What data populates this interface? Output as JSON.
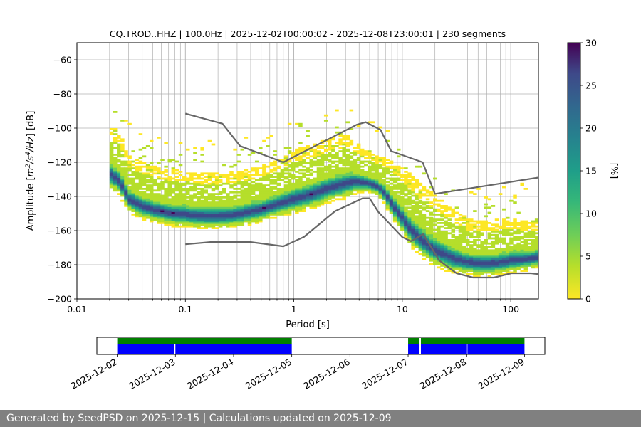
{
  "chart_data": [
    {
      "type": "heatmap",
      "title": "CQ.TROD..HHZ | 100.0Hz | 2025-12-02T00:00:02 - 2025-12-08T23:00:01 | 230 segments",
      "xlabel": "Period [s]",
      "ylabel_prefix": "Amplitude [",
      "ylabel_units": {
        "base1": "m",
        "sup1": "2",
        "mid": "/s",
        "sup2": "4",
        "tail": "/Hz",
        "end": "] [dB]"
      },
      "xscale": "log",
      "xlim": [
        0.01,
        180
      ],
      "ylim": [
        -200,
        -50
      ],
      "x_ticks": [
        0.01,
        0.1,
        1,
        10,
        100
      ],
      "x_tick_labels": [
        "0.01",
        "0.1",
        "1",
        "10",
        "100"
      ],
      "y_ticks": [
        -200,
        -180,
        -160,
        -140,
        -120,
        -100,
        -80,
        -60
      ],
      "y_tick_labels": [
        "−200",
        "−180",
        "−160",
        "−140",
        "−120",
        "−100",
        "−80",
        "−60"
      ],
      "grid": true,
      "colorbar": {
        "label": "[%]",
        "min": 0,
        "max": 30,
        "ticks": [
          0,
          5,
          10,
          15,
          20,
          25,
          30
        ],
        "tick_labels": [
          "0",
          "5",
          "10",
          "15",
          "20",
          "25",
          "30"
        ],
        "colormap": "viridis_r"
      },
      "psd_mode": {
        "periods": [
          0.02,
          0.025,
          0.03,
          0.04,
          0.05,
          0.07,
          0.1,
          0.15,
          0.2,
          0.3,
          0.5,
          0.7,
          1,
          1.5,
          2,
          3,
          3.5,
          4,
          5,
          6,
          7,
          8,
          10,
          12,
          15,
          20,
          30,
          40,
          60,
          80,
          100,
          150,
          180
        ],
        "db": [
          -127,
          -132,
          -142,
          -146,
          -148,
          -150,
          -151,
          -152,
          -152,
          -151,
          -148,
          -145,
          -142,
          -139,
          -136,
          -133,
          -132,
          -132,
          -133,
          -135,
          -139,
          -145,
          -153,
          -160,
          -166,
          -172,
          -177,
          -179,
          -180,
          -179,
          -178,
          -177,
          -176
        ],
        "spread_db": [
          8,
          8,
          7,
          7,
          7,
          7,
          7,
          7,
          7,
          7,
          7,
          7,
          8,
          8,
          8,
          8,
          7,
          6,
          5,
          5,
          6,
          7,
          8,
          9,
          9,
          9,
          8,
          7,
          7,
          7,
          7,
          6,
          6
        ]
      },
      "series": [
        {
          "name": "NHNM",
          "x": [
            0.1,
            0.22,
            0.32,
            0.8,
            3.8,
            4.6,
            6.3,
            7.9,
            15.4,
            20,
            354.8
          ],
          "values": [
            -91.5,
            -97.4,
            -110.5,
            -120,
            -98,
            -96.5,
            -101,
            -113.5,
            -120,
            -138.5,
            -126
          ]
        },
        {
          "name": "NLNM",
          "x": [
            0.1,
            0.17,
            0.4,
            0.8,
            1.24,
            2.4,
            4.3,
            5,
            6,
            10,
            12,
            15.6,
            21.9,
            31.6,
            45,
            70,
            101,
            154,
            328
          ],
          "values": [
            -168,
            -166.7,
            -166.7,
            -169.2,
            -163.7,
            -148.6,
            -141.1,
            -141.1,
            -149,
            -163.8,
            -166.2,
            -162.1,
            -177.5,
            -185,
            -187.5,
            -187.5,
            -185,
            -185,
            -187.5
          ]
        }
      ]
    },
    {
      "type": "timeline",
      "x_tick_labels": [
        "2025-12-02",
        "2025-12-03",
        "2025-12-04",
        "2025-12-05",
        "2025-12-06",
        "2025-12-07",
        "2025-12-08",
        "2025-12-09"
      ],
      "x_days_range": [
        -0.35,
        7.35
      ],
      "data_gaps_days": [
        [
          0.0,
          3.0
        ],
        [
          5.0,
          5.19
        ],
        [
          5.22,
          7.0
        ]
      ],
      "psd_segments_days": [
        [
          0.0,
          0.98
        ],
        [
          1.0,
          3.0
        ],
        [
          5.0,
          5.19
        ],
        [
          5.22,
          6.0
        ],
        [
          6.02,
          7.0
        ]
      ],
      "colors": {
        "availability": "#008000",
        "segments": "#0000ff"
      }
    }
  ],
  "footer": {
    "text": "Generated by SeedPSD on 2025-12-15 | Calculations updated on 2025-12-09"
  }
}
